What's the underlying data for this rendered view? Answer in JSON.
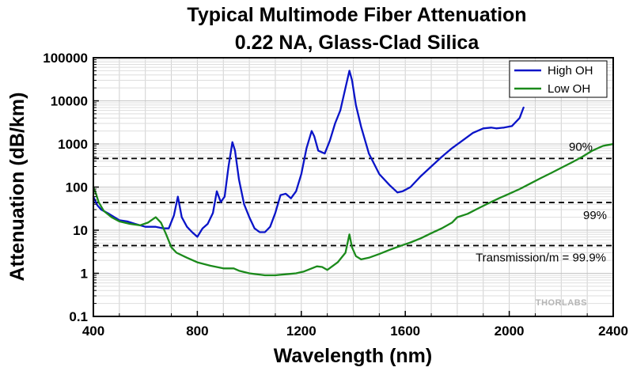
{
  "chart_data": {
    "type": "line",
    "title": "Typical Multimode Fiber Attenuation",
    "subtitle": "0.22 NA, Glass-Clad Silica",
    "xlabel": "Wavelength (nm)",
    "ylabel": "Attenuation (dB/km)",
    "xlim": [
      400,
      2400
    ],
    "ylim": [
      0.1,
      100000
    ],
    "yscale": "log",
    "grid": true,
    "legend_position": "top-right",
    "x_ticks": [
      400,
      800,
      1200,
      1600,
      2000,
      2400
    ],
    "x_tick_labels": [
      "400",
      "800",
      "1200",
      "1600",
      "2000",
      "2400"
    ],
    "y_ticks": [
      0.1,
      1,
      10,
      100,
      1000,
      10000,
      100000
    ],
    "y_tick_labels": [
      "0.1",
      "1",
      "10",
      "100",
      "1000",
      "10000",
      "100000"
    ],
    "series": [
      {
        "name": "High OH",
        "color": "#0a14c8",
        "x": [
          400,
          415,
          430,
          460,
          500,
          530,
          560,
          600,
          640,
          670,
          690,
          710,
          725,
          740,
          760,
          780,
          800,
          820,
          840,
          860,
          875,
          890,
          905,
          920,
          935,
          945,
          960,
          980,
          1000,
          1020,
          1040,
          1060,
          1080,
          1100,
          1120,
          1140,
          1160,
          1180,
          1200,
          1220,
          1240,
          1250,
          1265,
          1290,
          1310,
          1330,
          1350,
          1370,
          1385,
          1395,
          1410,
          1430,
          1460,
          1500,
          1540,
          1570,
          1590,
          1620,
          1660,
          1700,
          1740,
          1780,
          1820,
          1860,
          1900,
          1930,
          1950,
          1980,
          2010,
          2040,
          2055
        ],
        "y": [
          60,
          38,
          30,
          24,
          17,
          16,
          14,
          12,
          12,
          11,
          11,
          22,
          60,
          20,
          12,
          9,
          7,
          11,
          14,
          25,
          80,
          45,
          60,
          300,
          1100,
          700,
          150,
          40,
          20,
          11,
          9,
          9,
          12,
          25,
          65,
          70,
          55,
          80,
          200,
          800,
          2000,
          1500,
          700,
          600,
          1200,
          3000,
          6000,
          20000,
          50000,
          30000,
          8000,
          2500,
          600,
          200,
          110,
          75,
          80,
          100,
          180,
          300,
          500,
          800,
          1200,
          1800,
          2300,
          2400,
          2300,
          2400,
          2600,
          4000,
          7000
        ]
      },
      {
        "name": "Low OH",
        "color": "#1b8a1b",
        "x": [
          400,
          410,
          420,
          440,
          470,
          500,
          540,
          580,
          610,
          640,
          660,
          680,
          700,
          720,
          760,
          800,
          850,
          900,
          940,
          960,
          1000,
          1060,
          1100,
          1140,
          1180,
          1210,
          1240,
          1260,
          1280,
          1300,
          1340,
          1370,
          1385,
          1395,
          1410,
          1430,
          1460,
          1500,
          1540,
          1580,
          1620,
          1660,
          1700,
          1740,
          1780,
          1800,
          1840,
          1880,
          1920,
          1960,
          2000,
          2040,
          2080,
          2120,
          2160,
          2200,
          2240,
          2280,
          2320,
          2360,
          2400
        ],
        "y": [
          100,
          70,
          45,
          28,
          20,
          16,
          14,
          13,
          15,
          20,
          15,
          8,
          4,
          3,
          2.3,
          1.8,
          1.5,
          1.3,
          1.3,
          1.15,
          1.0,
          0.9,
          0.9,
          0.95,
          1.0,
          1.1,
          1.3,
          1.45,
          1.4,
          1.2,
          1.8,
          3.0,
          8.0,
          4.0,
          2.5,
          2.1,
          2.3,
          2.8,
          3.5,
          4.3,
          5.2,
          6.5,
          8.5,
          11,
          15,
          20,
          24,
          32,
          42,
          55,
          70,
          90,
          120,
          160,
          210,
          280,
          370,
          500,
          700,
          900,
          1000
        ]
      }
    ],
    "reference_lines": [
      {
        "y": 460,
        "label": "90%"
      },
      {
        "y": 44,
        "label": "99%"
      },
      {
        "y": 4.4,
        "label": "Transmission/m = 99.9%"
      }
    ],
    "watermark": "THORLABS"
  }
}
